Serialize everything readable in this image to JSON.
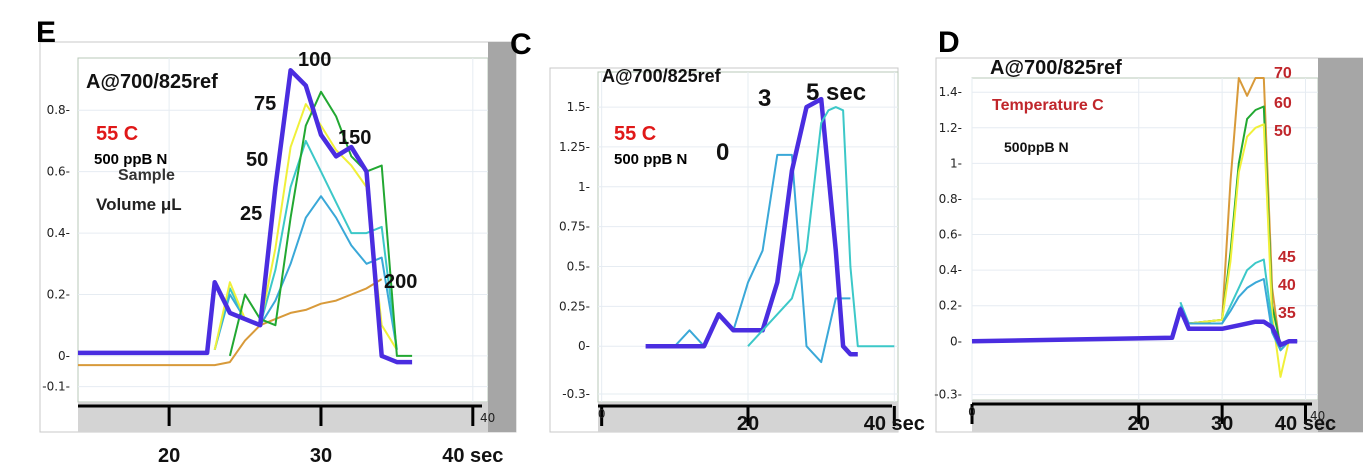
{
  "chart_data": [
    {
      "type": "line",
      "panel": "E",
      "title": "A@700/825ref",
      "ylim": [
        -0.15,
        0.97
      ],
      "xlim": [
        14,
        41
      ],
      "yticks": [
        0.8,
        0.6,
        0.4,
        0.2,
        0,
        -0.1
      ],
      "ytick_labels": [
        "0.8-",
        "0.6-",
        "0.4-",
        "0.2-",
        "0-",
        "-0.1-"
      ],
      "xticks": [
        20,
        30,
        40
      ],
      "xtick_labels": [
        "20",
        "30",
        "40 sec"
      ],
      "corner_label": "40",
      "annotations": {
        "temperature": "55 C",
        "concentration": "500 ppB N",
        "sample": "Sample",
        "volume": "Volume μL",
        "series_labels": [
          "100",
          "75",
          "50",
          "150",
          "25",
          "200"
        ]
      },
      "colors": {
        "100": "#4a2de0",
        "75": "#f0f03a",
        "50": "#3cc8c8",
        "150": "#22a832",
        "25": "#3aa8d8",
        "200": "#d89a3a"
      },
      "series": [
        {
          "name": "200",
          "x": [
            14,
            23,
            24,
            25,
            26,
            27,
            28,
            29,
            30,
            31,
            32,
            33,
            34
          ],
          "y": [
            -0.03,
            -0.03,
            -0.02,
            0.05,
            0.1,
            0.12,
            0.14,
            0.15,
            0.17,
            0.18,
            0.2,
            0.22,
            0.25
          ]
        },
        {
          "name": "25",
          "x": [
            23,
            24,
            25,
            26,
            27,
            28,
            29,
            30,
            31,
            32,
            33,
            34,
            35
          ],
          "y": [
            0.02,
            0.2,
            0.12,
            0.1,
            0.18,
            0.3,
            0.45,
            0.52,
            0.45,
            0.36,
            0.3,
            0.32,
            0.02
          ]
        },
        {
          "name": "50",
          "x": [
            23,
            24,
            25,
            26,
            27,
            28,
            29,
            30,
            31,
            32,
            33,
            34,
            35
          ],
          "y": [
            0.02,
            0.22,
            0.12,
            0.1,
            0.28,
            0.55,
            0.7,
            0.6,
            0.5,
            0.4,
            0.4,
            0.42,
            0.02
          ]
        },
        {
          "name": "75",
          "x": [
            23,
            24,
            25,
            26,
            27,
            28,
            29,
            30,
            31,
            32,
            33,
            34,
            35
          ],
          "y": [
            0.02,
            0.24,
            0.12,
            0.1,
            0.35,
            0.68,
            0.82,
            0.75,
            0.67,
            0.62,
            0.55,
            0.1,
            0.02
          ]
        },
        {
          "name": "150",
          "x": [
            24,
            25,
            26,
            27,
            28,
            29,
            30,
            31,
            32,
            33,
            34,
            35,
            36
          ],
          "y": [
            0.0,
            0.2,
            0.12,
            0.1,
            0.45,
            0.75,
            0.86,
            0.78,
            0.65,
            0.6,
            0.62,
            0.0,
            0.0
          ]
        },
        {
          "name": "100",
          "x": [
            14,
            22.5,
            23,
            24,
            25,
            26,
            27,
            28,
            29,
            30,
            31,
            32,
            33,
            34,
            35,
            36
          ],
          "y": [
            0.01,
            0.01,
            0.24,
            0.14,
            0.12,
            0.1,
            0.55,
            0.93,
            0.88,
            0.72,
            0.65,
            0.68,
            0.6,
            0.0,
            -0.02,
            -0.02
          ]
        }
      ]
    },
    {
      "type": "line",
      "panel": "C",
      "title": "A@700/825ref",
      "ylim": [
        -0.35,
        1.72
      ],
      "xlim": [
        -0.5,
        40.5
      ],
      "yticks": [
        1.5,
        1.25,
        1,
        0.75,
        0.5,
        0.25,
        0,
        -0.3
      ],
      "ytick_labels": [
        "1.5-",
        "1.25-",
        "1-",
        "0.75-",
        "0.5-",
        "0.25-",
        "0-",
        "-0.3-"
      ],
      "xticks": [
        0,
        20,
        40
      ],
      "xtick_labels": [
        "0",
        "20",
        "40 sec"
      ],
      "annotations": {
        "temperature": "55 C",
        "concentration": "500 ppB N",
        "series_labels": [
          "0",
          "3",
          "5 sec"
        ]
      },
      "colors": {
        "0": "#3aa8d8",
        "3": "#4a2de0",
        "5 sec": "#3cc8c8"
      },
      "series": [
        {
          "name": "0",
          "x": [
            8,
            10,
            12,
            14,
            16,
            18,
            20,
            22,
            24,
            26,
            28,
            30,
            32,
            34
          ],
          "y": [
            0.0,
            0.0,
            0.1,
            0.0,
            0.2,
            0.1,
            0.4,
            0.6,
            1.2,
            1.2,
            0.0,
            -0.1,
            0.3,
            0.3
          ]
        },
        {
          "name": "3",
          "x": [
            6,
            14,
            16,
            18,
            20,
            22,
            24,
            26,
            28,
            30,
            32,
            33,
            34,
            35
          ],
          "y": [
            0.0,
            0.0,
            0.2,
            0.1,
            0.1,
            0.1,
            0.4,
            1.1,
            1.5,
            1.55,
            0.6,
            0.0,
            -0.05,
            -0.05
          ]
        },
        {
          "name": "5 sec",
          "x": [
            20,
            22,
            24,
            26,
            28,
            29,
            30,
            31,
            32,
            33,
            34,
            35,
            36,
            38,
            40
          ],
          "y": [
            0.0,
            0.1,
            0.2,
            0.3,
            0.6,
            1.0,
            1.4,
            1.48,
            1.5,
            1.48,
            0.5,
            0.0,
            0.0,
            0.0,
            0.0
          ]
        }
      ]
    },
    {
      "type": "line",
      "panel": "D",
      "title": "A@700/825ref",
      "ylim": [
        -0.33,
        1.48
      ],
      "xlim": [
        0,
        41.5
      ],
      "yticks": [
        1.4,
        1.2,
        1,
        0.8,
        0.6,
        0.4,
        0.2,
        0,
        -0.3
      ],
      "ytick_labels": [
        "1.4-",
        "1.2-",
        "1-",
        "0.8-",
        "0.6-",
        "0.4-",
        "0.2-",
        "0-",
        "-0.3-"
      ],
      "xticks": [
        0,
        20,
        30,
        40
      ],
      "xtick_labels": [
        "0",
        "20",
        "30",
        "40 sec"
      ],
      "corner_label": "40",
      "annotations": {
        "legend_title": "Temperature C",
        "concentration": "500ppB  N",
        "series_labels": [
          "70",
          "60",
          "50",
          "45",
          "40",
          "35"
        ]
      },
      "colors": {
        "70": "#d89a3a",
        "60": "#22a832",
        "50": "#f0f03a",
        "45": "#3cc8c8",
        "40": "#3aa8d8",
        "35": "#4a2de0"
      },
      "series": [
        {
          "name": "70",
          "x": [
            25,
            26,
            30,
            31,
            32,
            33,
            34,
            35,
            36,
            37,
            38,
            39
          ],
          "y": [
            0.15,
            0.1,
            0.12,
            0.9,
            1.48,
            1.38,
            1.48,
            1.48,
            0.3,
            -0.05,
            0.0,
            0.0
          ]
        },
        {
          "name": "60",
          "x": [
            25,
            26,
            30,
            31,
            32,
            33,
            34,
            35,
            36,
            37,
            38,
            39
          ],
          "y": [
            0.18,
            0.1,
            0.12,
            0.5,
            1.0,
            1.25,
            1.3,
            1.32,
            0.2,
            -0.02,
            0.0,
            0.0
          ]
        },
        {
          "name": "50",
          "x": [
            25,
            26,
            30,
            31,
            32,
            33,
            34,
            35,
            36,
            37,
            38,
            39
          ],
          "y": [
            0.15,
            0.1,
            0.12,
            0.45,
            0.95,
            1.15,
            1.2,
            1.22,
            0.15,
            -0.2,
            0.0,
            0.0
          ]
        },
        {
          "name": "45",
          "x": [
            25,
            26,
            30,
            31,
            32,
            33,
            34,
            35,
            36,
            37,
            38,
            39
          ],
          "y": [
            0.22,
            0.1,
            0.1,
            0.2,
            0.3,
            0.4,
            0.44,
            0.46,
            0.1,
            -0.05,
            0.0,
            0.0
          ]
        },
        {
          "name": "40",
          "x": [
            25,
            26,
            30,
            31,
            32,
            33,
            34,
            35,
            36,
            37,
            38,
            39
          ],
          "y": [
            0.2,
            0.1,
            0.1,
            0.17,
            0.25,
            0.3,
            0.33,
            0.35,
            0.05,
            -0.05,
            0.0,
            0.0
          ]
        },
        {
          "name": "35",
          "x": [
            0,
            24,
            25,
            26,
            30,
            32,
            34,
            35,
            36,
            37,
            38,
            39
          ],
          "y": [
            0.0,
            0.02,
            0.18,
            0.07,
            0.07,
            0.09,
            0.11,
            0.11,
            0.08,
            -0.02,
            0.0,
            0.0
          ]
        }
      ]
    }
  ]
}
